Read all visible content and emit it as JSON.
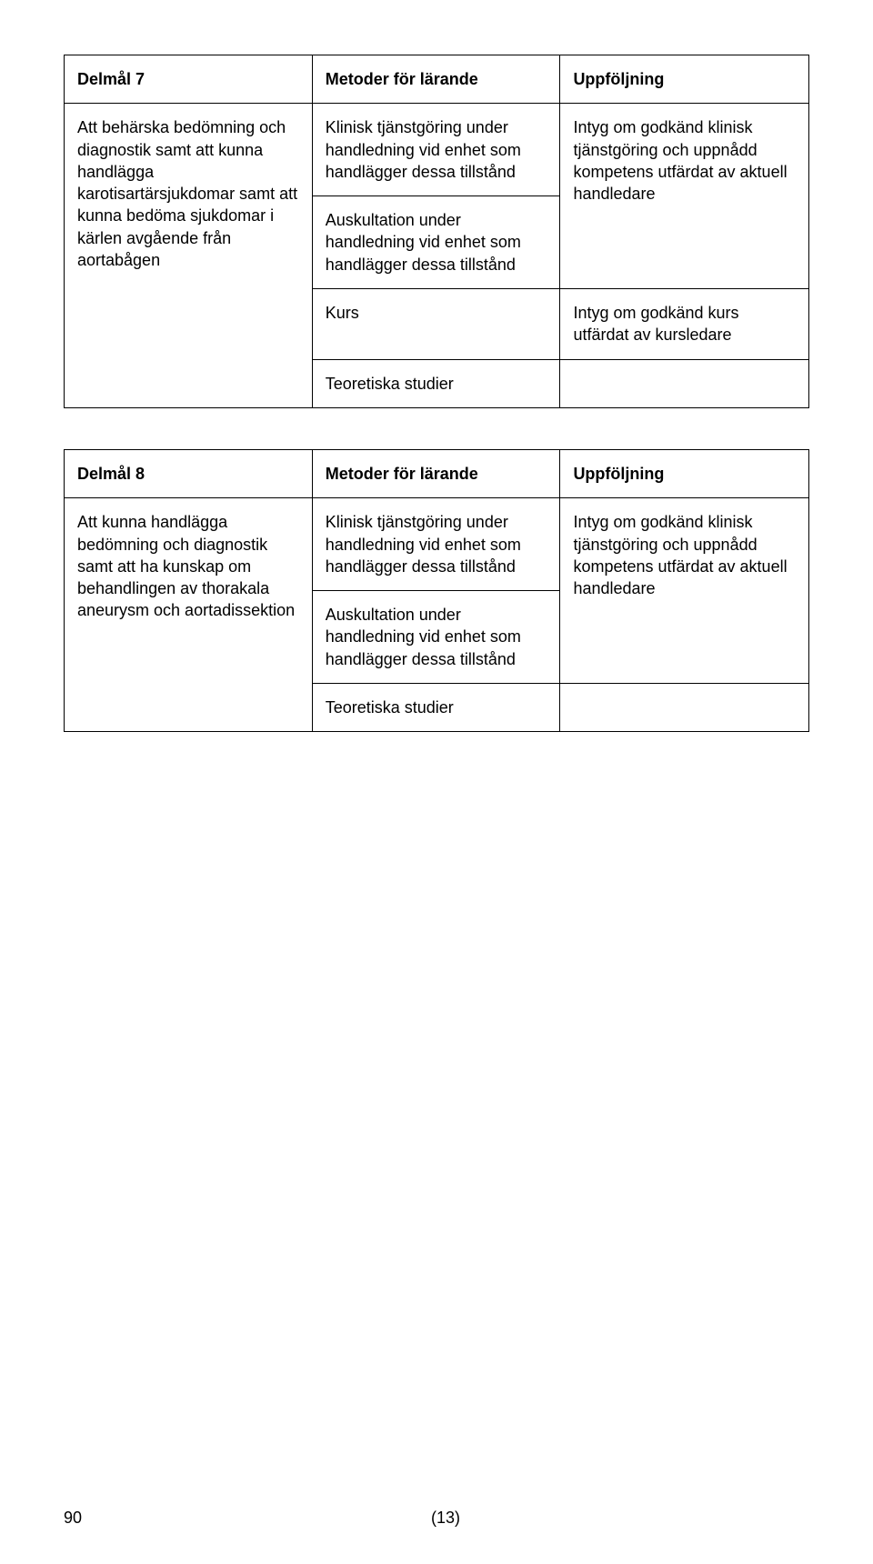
{
  "tables": [
    {
      "row_count": 5,
      "header": {
        "c1": "Delmål 7",
        "c2": "Metoder för lärande",
        "c3": "Uppföljning"
      },
      "col1": {
        "rowspan": 4,
        "text": "Att behärska bedömning och diagnostik samt att kunna handlägga karotisartärsjukdomar samt att kunna bedöma sjukdomar i kärlen avgående från aortabågen"
      },
      "rows": [
        {
          "c2": "Klinisk tjänstgöring under handledning vid enhet som handlägger dessa tillstånd",
          "c3": {
            "rowspan": 2,
            "text": "Intyg om godkänd klinisk tjänstgöring och uppnådd kompetens utfärdat av aktuell handledare"
          }
        },
        {
          "c2": "Auskultation under handledning vid enhet som handlägger dessa tillstånd"
        },
        {
          "c2": "Kurs",
          "c3": "Intyg om godkänd kurs utfärdat av kursledare"
        },
        {
          "c2": "Teoretiska studier",
          "c3": ""
        }
      ]
    },
    {
      "row_count": 4,
      "header": {
        "c1": "Delmål 8",
        "c2": "Metoder för lärande",
        "c3": "Uppföljning"
      },
      "col1": {
        "rowspan": 3,
        "text": "Att kunna handlägga bedömning och diagnostik samt att ha kunskap om behandlingen av thorakala aneurysm och aortadissektion"
      },
      "rows": [
        {
          "c2": "Klinisk tjänstgöring under handledning vid enhet som handlägger dessa tillstånd",
          "c3": {
            "rowspan": 2,
            "text": "Intyg om godkänd klinisk tjänstgöring och uppnådd kompetens utfärdat av aktuell handledare"
          }
        },
        {
          "c2": "Auskultation under handledning vid enhet som handlägger dessa tillstånd"
        },
        {
          "c2": "Teoretiska studier",
          "c3": ""
        }
      ]
    }
  ],
  "footer": {
    "page_num": "90",
    "page_of": "(13)"
  }
}
